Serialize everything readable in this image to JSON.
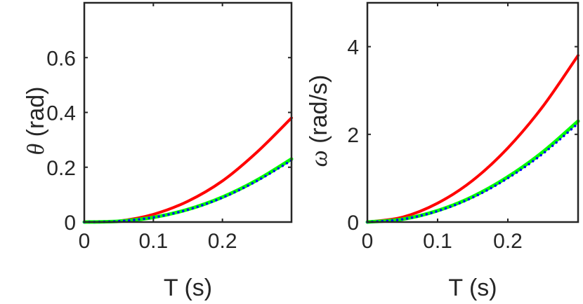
{
  "chart_data": [
    {
      "type": "line",
      "xlabel": "T (s)",
      "ylabel_symbol": "θ",
      "ylabel_unit": " (rad)",
      "xlim": [
        0,
        0.3
      ],
      "ylim": [
        0,
        0.8
      ],
      "xticks": [
        0,
        0.1,
        0.2
      ],
      "xtick_labels": [
        "0",
        "0.1",
        "0.2"
      ],
      "yticks": [
        0,
        0.2,
        0.4,
        0.6
      ],
      "ytick_labels": [
        "0",
        "0.2",
        "0.4",
        "0.6"
      ],
      "series": [
        {
          "name": "red",
          "color": "#ff0000",
          "style": "solid",
          "x": [
            0,
            0.05,
            0.1,
            0.15,
            0.2,
            0.25,
            0.3
          ],
          "y": [
            0,
            0.004,
            0.028,
            0.076,
            0.15,
            0.255,
            0.38
          ]
        },
        {
          "name": "green",
          "color": "#00ff00",
          "style": "solid",
          "x": [
            0,
            0.05,
            0.1,
            0.15,
            0.2,
            0.25,
            0.3
          ],
          "y": [
            0,
            0.003,
            0.017,
            0.046,
            0.091,
            0.153,
            0.23
          ]
        },
        {
          "name": "blue",
          "color": "#0000ff",
          "style": "dotted",
          "x": [
            0,
            0.05,
            0.1,
            0.15,
            0.2,
            0.25,
            0.3
          ],
          "y": [
            0,
            0.003,
            0.017,
            0.045,
            0.089,
            0.15,
            0.225
          ]
        }
      ]
    },
    {
      "type": "line",
      "xlabel": "T (s)",
      "ylabel_symbol": "ω",
      "ylabel_unit": " (rad/s)",
      "xlim": [
        0,
        0.3
      ],
      "ylim": [
        0,
        5
      ],
      "xticks": [
        0,
        0.1,
        0.2
      ],
      "xtick_labels": [
        "0",
        "0.1",
        "0.2"
      ],
      "yticks": [
        0,
        2,
        4
      ],
      "ytick_labels": [
        "0",
        "2",
        "4"
      ],
      "series": [
        {
          "name": "red",
          "color": "#ff0000",
          "style": "solid",
          "x": [
            0,
            0.05,
            0.1,
            0.15,
            0.2,
            0.25,
            0.3
          ],
          "y": [
            0,
            0.11,
            0.43,
            0.95,
            1.69,
            2.64,
            3.8
          ]
        },
        {
          "name": "green",
          "color": "#00ff00",
          "style": "solid",
          "x": [
            0,
            0.05,
            0.1,
            0.15,
            0.2,
            0.25,
            0.3
          ],
          "y": [
            0,
            0.065,
            0.26,
            0.58,
            1.03,
            1.6,
            2.3
          ]
        },
        {
          "name": "blue",
          "color": "#0000ff",
          "style": "dotted",
          "x": [
            0,
            0.05,
            0.1,
            0.15,
            0.2,
            0.25,
            0.3
          ],
          "y": [
            0,
            0.063,
            0.25,
            0.56,
            1.0,
            1.56,
            2.25
          ]
        }
      ]
    }
  ]
}
